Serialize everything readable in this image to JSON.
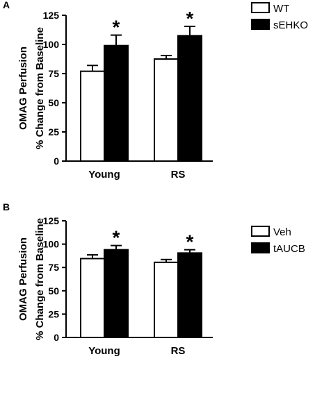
{
  "chart_data": [
    {
      "type": "bar",
      "panel_label": "A",
      "ylabel_lines": [
        "OMAG Perfusion",
        "% Change from Baseline"
      ],
      "categories": [
        "Young",
        "RS"
      ],
      "ylim": [
        0,
        125
      ],
      "yticks": [
        0,
        25,
        50,
        75,
        100,
        125
      ],
      "series": [
        {
          "name": "WT",
          "fill": "#ffffff",
          "values": [
            77,
            87.5
          ],
          "errors": [
            5,
            3
          ]
        },
        {
          "name": "sEHKO",
          "fill": "#000000",
          "values": [
            99,
            107.5
          ],
          "errors": [
            9,
            8
          ]
        }
      ],
      "annotations": [
        {
          "text": "*",
          "category": "Young",
          "series": "sEHKO"
        },
        {
          "text": "*",
          "category": "RS",
          "series": "sEHKO"
        }
      ],
      "legend": "top-right",
      "grid": false
    },
    {
      "type": "bar",
      "panel_label": "B",
      "ylabel_lines": [
        "OMAG Perfusion",
        "% Change from Baseline"
      ],
      "categories": [
        "Young",
        "RS"
      ],
      "ylim": [
        0,
        125
      ],
      "yticks": [
        0,
        25,
        50,
        75,
        100,
        125
      ],
      "series": [
        {
          "name": "Veh",
          "fill": "#ffffff",
          "values": [
            84.5,
            80.5
          ],
          "errors": [
            4,
            3
          ]
        },
        {
          "name": "tAUCB",
          "fill": "#000000",
          "values": [
            94,
            90.5
          ],
          "errors": [
            4.5,
            3.5
          ]
        }
      ],
      "annotations": [
        {
          "text": "*",
          "category": "Young",
          "series": "tAUCB"
        },
        {
          "text": "*",
          "category": "RS",
          "series": "tAUCB"
        }
      ],
      "legend": "top-right",
      "grid": false
    }
  ]
}
